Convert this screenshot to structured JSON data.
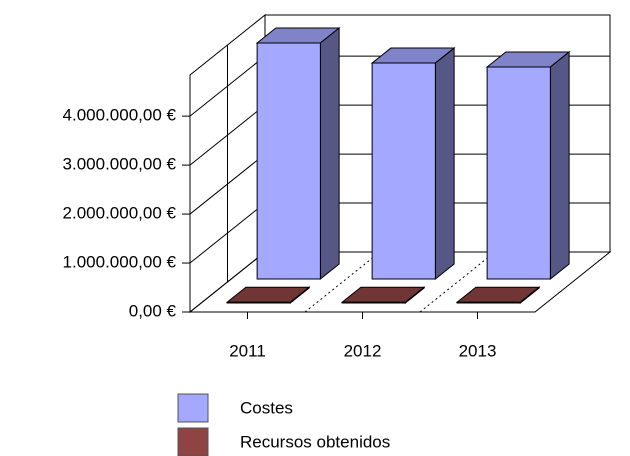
{
  "chart_data": {
    "type": "bar3d",
    "categories": [
      "2011",
      "2012",
      "2013"
    ],
    "series": [
      {
        "name": "Costes",
        "color": "#a4a8ff",
        "values": [
          4820000,
          4410000,
          4330000
        ]
      },
      {
        "name": "Recursos obtenidos",
        "color": "#8f4444",
        "values": [
          15000,
          15000,
          15000
        ]
      }
    ],
    "ylim": [
      0,
      4840000
    ],
    "yticks": [
      {
        "value": 0,
        "label": "0,00 €"
      },
      {
        "value": 1000000,
        "label": "1.000.000,00 €"
      },
      {
        "value": 2000000,
        "label": "2.000.000,00 €"
      },
      {
        "value": 3000000,
        "label": "3.000.000,00 €"
      },
      {
        "value": 4000000,
        "label": "4.000.000,00 €"
      }
    ],
    "grid": true,
    "legend": "bottom"
  }
}
